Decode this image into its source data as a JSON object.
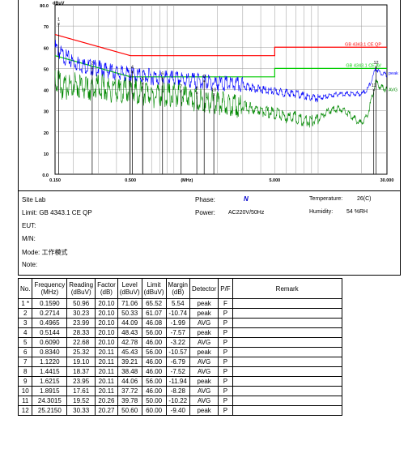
{
  "chart_data": {
    "type": "line",
    "x_scale": "log",
    "xlim": [
      0.15,
      30
    ],
    "ylim": [
      0,
      80
    ],
    "ylabel": "dBuV",
    "xlabel": "(MHz)",
    "y_ticks": [
      "0.0",
      "10",
      "20",
      "30",
      "40",
      "50",
      "60",
      "70",
      "80.0"
    ],
    "x_ticks": [
      {
        "v": 0.15,
        "label": "0.150"
      },
      {
        "v": 0.5,
        "label": "0.500"
      },
      {
        "v": 1.23,
        "label": "(MHz)"
      },
      {
        "v": 5,
        "label": "5.000"
      },
      {
        "v": 30,
        "label": "30.000"
      }
    ],
    "limit_lines": [
      {
        "name": "GB 4343.1 CE QP",
        "color": "#ff0000",
        "points": [
          [
            0.15,
            66
          ],
          [
            0.5,
            56
          ],
          [
            5,
            56
          ],
          [
            5,
            60
          ],
          [
            30,
            60
          ]
        ]
      },
      {
        "name": "GB 4343.1 CE AV",
        "color": "#00cc00",
        "points": [
          [
            0.15,
            56
          ],
          [
            0.5,
            46
          ],
          [
            5,
            46
          ],
          [
            5,
            50
          ],
          [
            30,
            50
          ]
        ]
      }
    ],
    "series": [
      {
        "name": "peak",
        "color": "#0000ff",
        "points": [
          [
            0.15,
            60
          ],
          [
            0.17,
            56
          ],
          [
            0.2,
            53
          ],
          [
            0.25,
            51
          ],
          [
            0.3,
            50
          ],
          [
            0.4,
            48
          ],
          [
            0.5,
            47
          ],
          [
            0.7,
            46
          ],
          [
            1,
            45
          ],
          [
            1.5,
            44
          ],
          [
            2,
            43
          ],
          [
            3,
            42
          ],
          [
            4,
            40
          ],
          [
            5,
            39
          ],
          [
            7,
            38
          ],
          [
            9,
            36
          ],
          [
            10,
            36
          ],
          [
            12,
            37
          ],
          [
            14,
            38
          ],
          [
            16,
            38
          ],
          [
            20,
            38
          ],
          [
            22,
            40
          ],
          [
            24,
            46
          ],
          [
            25,
            50
          ],
          [
            27,
            48
          ],
          [
            30,
            47
          ]
        ]
      },
      {
        "name": "AVG",
        "color": "#008800",
        "points": [
          [
            0.15,
            46
          ],
          [
            0.17,
            40
          ],
          [
            0.2,
            43
          ],
          [
            0.25,
            40
          ],
          [
            0.3,
            42
          ],
          [
            0.4,
            39
          ],
          [
            0.5,
            40
          ],
          [
            0.7,
            37
          ],
          [
            1,
            38
          ],
          [
            1.5,
            35
          ],
          [
            2,
            34
          ],
          [
            3,
            32
          ],
          [
            4,
            30
          ],
          [
            5,
            29
          ],
          [
            6,
            27
          ],
          [
            7,
            27
          ],
          [
            8,
            25
          ],
          [
            9,
            25
          ],
          [
            10,
            26
          ],
          [
            11,
            28
          ],
          [
            12,
            30
          ],
          [
            14,
            31
          ],
          [
            16,
            29
          ],
          [
            18,
            26
          ],
          [
            20,
            24
          ],
          [
            22,
            28
          ],
          [
            24,
            38
          ],
          [
            25,
            44
          ],
          [
            27,
            41
          ],
          [
            30,
            40
          ]
        ]
      }
    ],
    "markers": [
      {
        "n": "1",
        "x": 0.159,
        "y": 71.06
      },
      {
        "n": "2",
        "x": 0.2714,
        "y": 50.33
      },
      {
        "n": "3",
        "x": 0.4965,
        "y": 44.09
      },
      {
        "n": "4",
        "x": 0.5144,
        "y": 48.43
      },
      {
        "n": "5",
        "x": 0.609,
        "y": 42.78
      },
      {
        "n": "6",
        "x": 0.834,
        "y": 45.43
      },
      {
        "n": "7",
        "x": 1.122,
        "y": 39.21
      },
      {
        "n": "8",
        "x": 1.4415,
        "y": 38.48
      },
      {
        "n": "9",
        "x": 1.6215,
        "y": 44.06
      },
      {
        "n": "10",
        "x": 1.8915,
        "y": 37.72
      },
      {
        "n": "11",
        "x": 24.3015,
        "y": 39.78
      },
      {
        "n": "12",
        "x": 25.215,
        "y": 50.6
      }
    ]
  },
  "info": {
    "site": "Site  Lab",
    "limit": "Limit:  GB 4343.1 CE QP",
    "eut": "EUT:",
    "mn": "M/N:",
    "mode": "Mode:  工作模式",
    "note": "Note:",
    "phase_label": "Phase:",
    "phase_value": "N",
    "power_label": "Power:",
    "power_value": "AC220V/50Hz",
    "temp_label": "Temperature:",
    "temp_value": "26(C)",
    "hum_label": "Humidity:",
    "hum_value": "54 %RH"
  },
  "table": {
    "headers": [
      "No.",
      "Frequency\n(MHz)",
      "Reading\n(dBuV)",
      "Factor\n(dB)",
      "Level\n(dBuV)",
      "Limit\n(dBuV)",
      "Margin\n(dB)",
      "Detector",
      "P/F",
      "Remark"
    ],
    "rows": [
      [
        "1 *",
        "0.1590",
        "50.96",
        "20.10",
        "71.06",
        "65.52",
        "5.54",
        "peak",
        "F",
        ""
      ],
      [
        "2",
        "0.2714",
        "30.23",
        "20.10",
        "50.33",
        "61.07",
        "-10.74",
        "peak",
        "P",
        ""
      ],
      [
        "3",
        "0.4965",
        "23.99",
        "20.10",
        "44.09",
        "46.08",
        "-1.99",
        "AVG",
        "P",
        ""
      ],
      [
        "4",
        "0.5144",
        "28.33",
        "20.10",
        "48.43",
        "56.00",
        "-7.57",
        "peak",
        "P",
        ""
      ],
      [
        "5",
        "0.6090",
        "22.68",
        "20.10",
        "42.78",
        "46.00",
        "-3.22",
        "AVG",
        "P",
        ""
      ],
      [
        "6",
        "0.8340",
        "25.32",
        "20.11",
        "45.43",
        "56.00",
        "-10.57",
        "peak",
        "P",
        ""
      ],
      [
        "7",
        "1.1220",
        "19.10",
        "20.11",
        "39.21",
        "46.00",
        "-6.79",
        "AVG",
        "P",
        ""
      ],
      [
        "8",
        "1.4415",
        "18.37",
        "20.11",
        "38.48",
        "46.00",
        "-7.52",
        "AVG",
        "P",
        ""
      ],
      [
        "9",
        "1.6215",
        "23.95",
        "20.11",
        "44.06",
        "56.00",
        "-11.94",
        "peak",
        "P",
        ""
      ],
      [
        "10",
        "1.8915",
        "17.61",
        "20.11",
        "37.72",
        "46.00",
        "-8.28",
        "AVG",
        "P",
        ""
      ],
      [
        "11",
        "24.3015",
        "19.52",
        "20.26",
        "39.78",
        "50.00",
        "-10.22",
        "AVG",
        "P",
        ""
      ],
      [
        "12",
        "25.2150",
        "30.33",
        "20.27",
        "50.60",
        "60.00",
        "-9.40",
        "peak",
        "P",
        ""
      ]
    ]
  }
}
